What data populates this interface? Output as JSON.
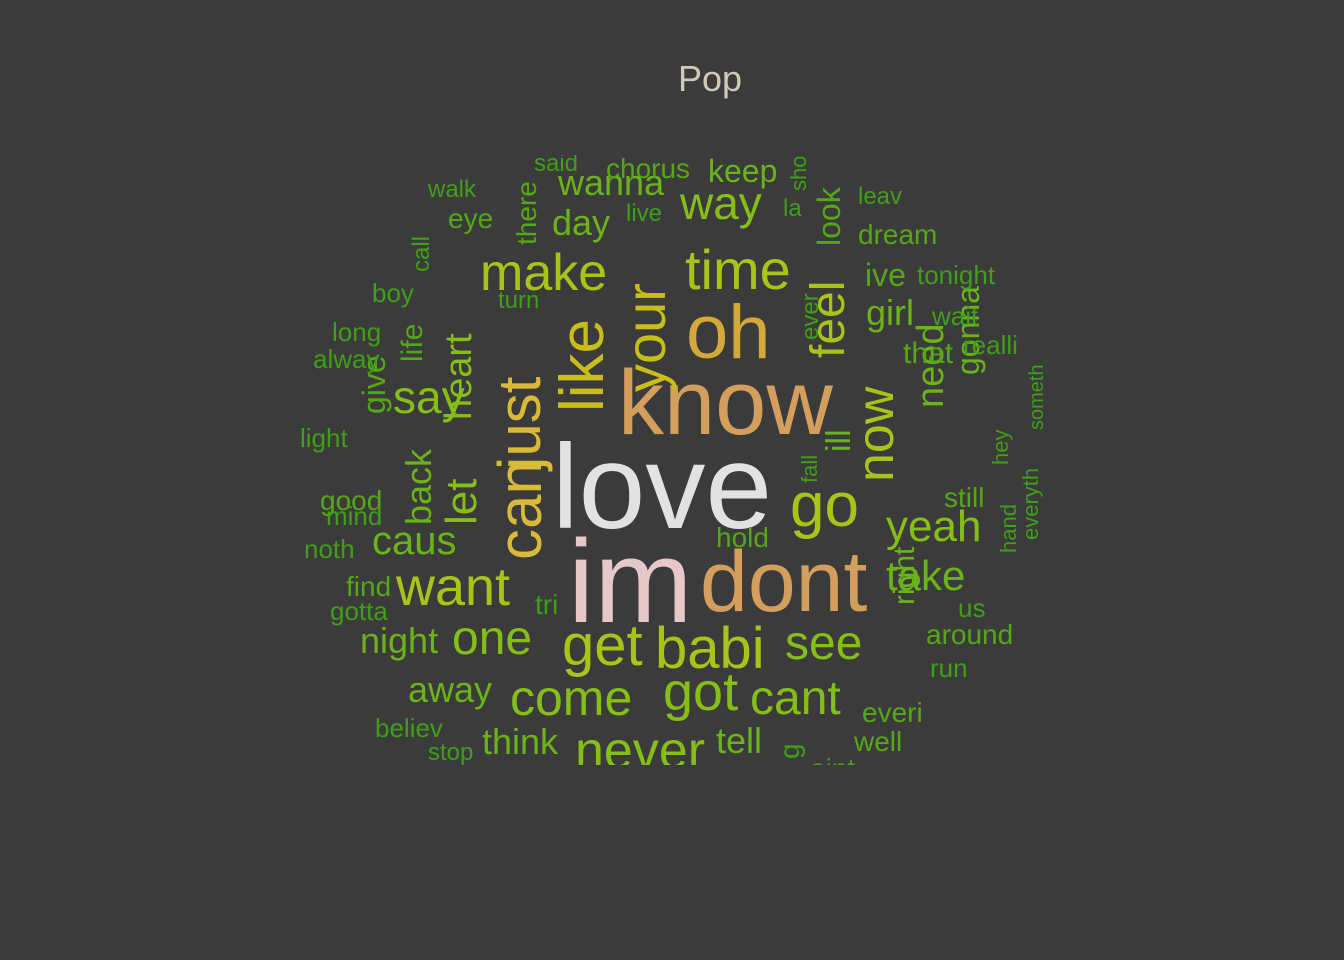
{
  "title": "Pop",
  "colors": {
    "background": "#3b3b3b",
    "title": "#cfcab8",
    "palette": [
      "#e0e0e0",
      "#e6c8c8",
      "#d4a35e",
      "#d8ba38",
      "#a8c418",
      "#86be18",
      "#6ab318",
      "#55a815",
      "#3f9f18"
    ]
  },
  "words": [
    {
      "text": "love",
      "color": "#e2e2e2",
      "rotate": false
    },
    {
      "text": "im",
      "color": "#e6c8c8",
      "rotate": false
    },
    {
      "text": "know",
      "color": "#d49e5c",
      "rotate": false
    },
    {
      "text": "dont",
      "color": "#d49e5c",
      "rotate": false
    },
    {
      "text": "oh",
      "color": "#d4a93a",
      "rotate": false
    },
    {
      "text": "can",
      "color": "#d8ba38",
      "rotate": true
    },
    {
      "text": "just",
      "color": "#d8ba38",
      "rotate": true
    },
    {
      "text": "like",
      "color": "#c9be18",
      "rotate": true
    },
    {
      "text": "your",
      "color": "#c9be18",
      "rotate": true
    },
    {
      "text": "time",
      "color": "#a8c418",
      "rotate": false
    },
    {
      "text": "get",
      "color": "#a8c418",
      "rotate": false
    },
    {
      "text": "babi",
      "color": "#a8c418",
      "rotate": false
    },
    {
      "text": "go",
      "color": "#a8c418",
      "rotate": false
    },
    {
      "text": "now",
      "color": "#a8c418",
      "rotate": true
    },
    {
      "text": "make",
      "color": "#a8c418",
      "rotate": false
    },
    {
      "text": "feel",
      "color": "#a8c418",
      "rotate": true
    },
    {
      "text": "want",
      "color": "#a8c418",
      "rotate": false
    },
    {
      "text": "got",
      "color": "#86be18",
      "rotate": false
    },
    {
      "text": "come",
      "color": "#86be18",
      "rotate": false
    },
    {
      "text": "never",
      "color": "#86be18",
      "rotate": false
    },
    {
      "text": "one",
      "color": "#86be18",
      "rotate": false
    },
    {
      "text": "see",
      "color": "#86be18",
      "rotate": false
    },
    {
      "text": "cant",
      "color": "#86be18",
      "rotate": false
    },
    {
      "text": "yeah",
      "color": "#86be18",
      "rotate": false
    },
    {
      "text": "let",
      "color": "#86be18",
      "rotate": true
    },
    {
      "text": "heart",
      "color": "#86be18",
      "rotate": true
    },
    {
      "text": "say",
      "color": "#86be18",
      "rotate": false
    },
    {
      "text": "way",
      "color": "#86be18",
      "rotate": false
    },
    {
      "text": "caus",
      "color": "#6ab318",
      "rotate": false
    },
    {
      "text": "take",
      "color": "#6ab318",
      "rotate": false
    },
    {
      "text": "need",
      "color": "#6ab318",
      "rotate": true
    },
    {
      "text": "gonna",
      "color": "#6ab318",
      "rotate": true
    },
    {
      "text": "girl",
      "color": "#6ab318",
      "rotate": false
    },
    {
      "text": "ill",
      "color": "#6ab318",
      "rotate": true
    },
    {
      "text": "wanna",
      "color": "#6ab318",
      "rotate": false
    },
    {
      "text": "day",
      "color": "#6ab318",
      "rotate": false
    },
    {
      "text": "back",
      "color": "#6ab318",
      "rotate": true
    },
    {
      "text": "night",
      "color": "#6ab318",
      "rotate": false
    },
    {
      "text": "away",
      "color": "#6ab318",
      "rotate": false
    },
    {
      "text": "think",
      "color": "#6ab318",
      "rotate": false
    },
    {
      "text": "tell",
      "color": "#6ab318",
      "rotate": false
    },
    {
      "text": "right",
      "color": "#6ab318",
      "rotate": true
    },
    {
      "text": "keep",
      "color": "#6ab318",
      "rotate": false
    },
    {
      "text": "look",
      "color": "#55a815",
      "rotate": true
    },
    {
      "text": "ive",
      "color": "#55a815",
      "rotate": false
    },
    {
      "text": "that",
      "color": "#55a815",
      "rotate": false
    },
    {
      "text": "life",
      "color": "#55a815",
      "rotate": true
    },
    {
      "text": "give",
      "color": "#55a815",
      "rotate": true
    },
    {
      "text": "good",
      "color": "#55a815",
      "rotate": false
    },
    {
      "text": "chorus",
      "color": "#55a815",
      "rotate": false
    },
    {
      "text": "dream",
      "color": "#55a815",
      "rotate": false
    },
    {
      "text": "eye",
      "color": "#55a815",
      "rotate": false
    },
    {
      "text": "there",
      "color": "#55a815",
      "rotate": true
    },
    {
      "text": "hold",
      "color": "#55a815",
      "rotate": false
    },
    {
      "text": "still",
      "color": "#55a815",
      "rotate": false
    },
    {
      "text": "around",
      "color": "#55a815",
      "rotate": false
    },
    {
      "text": "everi",
      "color": "#55a815",
      "rotate": false
    },
    {
      "text": "well",
      "color": "#55a815",
      "rotate": false
    },
    {
      "text": "find",
      "color": "#55a815",
      "rotate": false
    },
    {
      "text": "boy",
      "color": "#3f9f18",
      "rotate": false
    },
    {
      "text": "long",
      "color": "#3f9f18",
      "rotate": false
    },
    {
      "text": "alway",
      "color": "#3f9f18",
      "rotate": false
    },
    {
      "text": "light",
      "color": "#3f9f18",
      "rotate": false
    },
    {
      "text": "mind",
      "color": "#3f9f18",
      "rotate": false
    },
    {
      "text": "noth",
      "color": "#3f9f18",
      "rotate": false
    },
    {
      "text": "gotta",
      "color": "#3f9f18",
      "rotate": false
    },
    {
      "text": "believ",
      "color": "#3f9f18",
      "rotate": false
    },
    {
      "text": "stop",
      "color": "#3f9f18",
      "rotate": false
    },
    {
      "text": "walk",
      "color": "#3f9f18",
      "rotate": false
    },
    {
      "text": "said",
      "color": "#3f9f18",
      "rotate": false
    },
    {
      "text": "call",
      "color": "#3f9f18",
      "rotate": true
    },
    {
      "text": "turn",
      "color": "#3f9f18",
      "rotate": false
    },
    {
      "text": "live",
      "color": "#3f9f18",
      "rotate": false
    },
    {
      "text": "la",
      "color": "#3f9f18",
      "rotate": false
    },
    {
      "text": "sho",
      "color": "#3f9f18",
      "rotate": true
    },
    {
      "text": "leav",
      "color": "#3f9f18",
      "rotate": false
    },
    {
      "text": "tonight",
      "color": "#3f9f18",
      "rotate": false
    },
    {
      "text": "wait",
      "color": "#3f9f18",
      "rotate": false
    },
    {
      "text": "realli",
      "color": "#3f9f18",
      "rotate": false
    },
    {
      "text": "someth",
      "color": "#3f9f18",
      "rotate": true
    },
    {
      "text": "hey",
      "color": "#3f9f18",
      "rotate": true
    },
    {
      "text": "hand",
      "color": "#3f9f18",
      "rotate": true
    },
    {
      "text": "everyth",
      "color": "#3f9f18",
      "rotate": true
    },
    {
      "text": "ever",
      "color": "#3f9f18",
      "rotate": true
    },
    {
      "text": "fall",
      "color": "#3f9f18",
      "rotate": true
    },
    {
      "text": "us",
      "color": "#3f9f18",
      "rotate": false
    },
    {
      "text": "run",
      "color": "#3f9f18",
      "rotate": false
    },
    {
      "text": "tri",
      "color": "#3f9f18",
      "rotate": false
    },
    {
      "text": "aint",
      "color": "#3f9f18",
      "rotate": false
    },
    {
      "text": "g",
      "color": "#3f9f18",
      "rotate": true
    }
  ]
}
